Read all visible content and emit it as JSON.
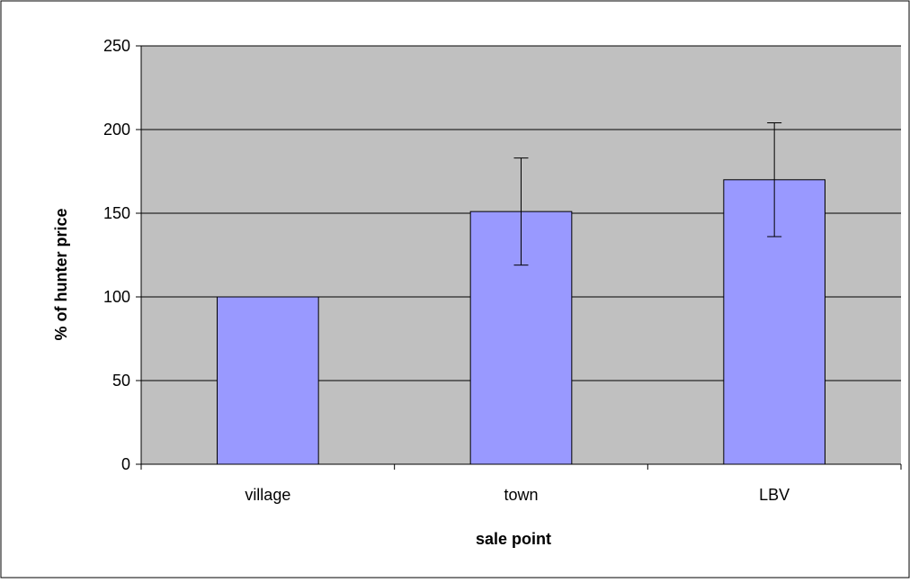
{
  "chart_data": {
    "type": "bar",
    "title": "",
    "xlabel": "sale point",
    "ylabel": "% of hunter price",
    "categories": [
      "village",
      "town",
      "LBV"
    ],
    "values": [
      100,
      151,
      170
    ],
    "error_bars": [
      {
        "low": 100,
        "high": 100
      },
      {
        "low": 119,
        "high": 183
      },
      {
        "low": 136,
        "high": 204
      }
    ],
    "ylim": [
      0,
      250
    ],
    "yticks": [
      0,
      50,
      100,
      150,
      200,
      250
    ],
    "grid": true,
    "legend": "none",
    "colors": {
      "bar_fill": "#9999ff",
      "bar_stroke": "#000000",
      "plot_background": "#c0c0c0",
      "gridline": "#000000",
      "frame": "#000000"
    }
  }
}
